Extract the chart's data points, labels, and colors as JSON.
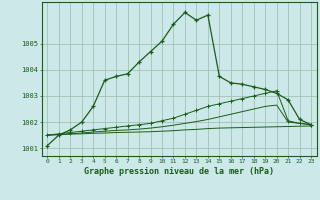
{
  "xlabel": "Graphe pression niveau de la mer (hPa)",
  "bg_color": "#cce8e8",
  "grid_color": "#aaccbb",
  "line_color": "#1a5c1a",
  "xlim": [
    -0.5,
    23.5
  ],
  "ylim": [
    1000.7,
    1006.6
  ],
  "yticks": [
    1001,
    1002,
    1003,
    1004,
    1005
  ],
  "xticks": [
    0,
    1,
    2,
    3,
    4,
    5,
    6,
    7,
    8,
    9,
    10,
    11,
    12,
    13,
    14,
    15,
    16,
    17,
    18,
    19,
    20,
    21,
    22,
    23
  ],
  "series1": [
    1001.1,
    1001.5,
    1001.7,
    1002.0,
    1002.6,
    1003.6,
    1003.75,
    1003.85,
    1004.3,
    1004.7,
    1005.1,
    1005.75,
    1006.2,
    1005.9,
    1006.1,
    1003.75,
    1003.5,
    1003.45,
    1003.35,
    1003.25,
    1003.1,
    1002.85,
    1002.1,
    1001.9
  ],
  "series2": [
    1001.5,
    1001.55,
    1001.6,
    1001.65,
    1001.7,
    1001.75,
    1001.8,
    1001.85,
    1001.9,
    1001.95,
    1002.05,
    1002.15,
    1002.3,
    1002.45,
    1002.6,
    1002.7,
    1002.8,
    1002.9,
    1003.0,
    1003.1,
    1003.2,
    1002.05,
    1001.95,
    1001.9
  ],
  "series3": [
    1001.5,
    1001.52,
    1001.55,
    1001.58,
    1001.62,
    1001.65,
    1001.68,
    1001.7,
    1001.73,
    1001.77,
    1001.82,
    1001.88,
    1001.95,
    1002.02,
    1002.1,
    1002.2,
    1002.3,
    1002.4,
    1002.5,
    1002.6,
    1002.65,
    1002.0,
    1001.95,
    1001.9
  ],
  "series4": [
    1001.5,
    1001.52,
    1001.54,
    1001.55,
    1001.57,
    1001.58,
    1001.6,
    1001.61,
    1001.62,
    1001.63,
    1001.65,
    1001.67,
    1001.7,
    1001.72,
    1001.75,
    1001.77,
    1001.78,
    1001.79,
    1001.8,
    1001.81,
    1001.82,
    1001.83,
    1001.84,
    1001.85
  ]
}
